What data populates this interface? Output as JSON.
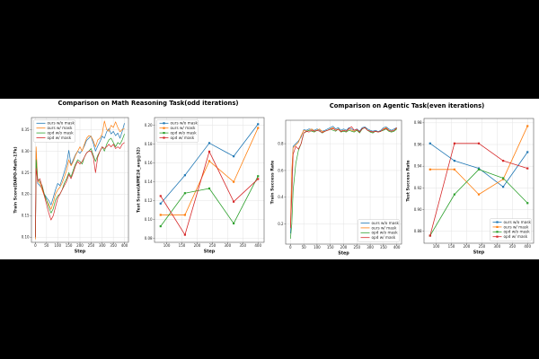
{
  "background_color": "#000000",
  "canvas_color": "#ffffff",
  "figures": [
    {
      "title": "Comparison on Math Reasoning Task(odd iterations)"
    },
    {
      "title": "Comparison on Agentic Task(even iterations)"
    }
  ],
  "palette": {
    "blue": "#1f77b4",
    "orange": "#ff7f0e",
    "green": "#2ca02c",
    "red": "#d62728"
  },
  "chart_data": [
    {
      "type": "line",
      "title": "Comparison on Math Reasoning Task(odd iterations)",
      "xlabel": "Step",
      "ylabel": "Train Score(DAPO-Math-17k)",
      "xlim": [
        -18,
        418
      ],
      "ylim": [
        0.088,
        0.378
      ],
      "xticks": [
        0,
        50,
        100,
        150,
        200,
        250,
        300,
        350,
        400
      ],
      "xtick_labels": [
        "0",
        "50",
        "100",
        "150",
        "200",
        "250",
        "300",
        "350",
        "400"
      ],
      "yticks": [
        0.1,
        0.15,
        0.2,
        0.25,
        0.3,
        0.35
      ],
      "ytick_labels": [
        "0.10",
        "0.15",
        "0.20",
        "0.25",
        "0.30",
        "0.35"
      ],
      "grid": true,
      "markers": false,
      "legend_pos": "upper-left",
      "x": [
        0,
        3,
        10,
        20,
        30,
        40,
        50,
        60,
        70,
        80,
        90,
        100,
        110,
        120,
        130,
        140,
        150,
        160,
        170,
        180,
        190,
        200,
        210,
        220,
        230,
        240,
        250,
        260,
        270,
        280,
        290,
        300,
        310,
        320,
        330,
        340,
        350,
        360,
        370,
        380,
        390,
        400
      ],
      "series": [
        {
          "name": "ours w/o mask",
          "color": "#1f77b4",
          "values": [
            0.1,
            0.3,
            0.225,
            0.22,
            0.213,
            0.2,
            0.192,
            0.185,
            0.175,
            0.192,
            0.21,
            0.225,
            0.22,
            0.235,
            0.252,
            0.27,
            0.302,
            0.268,
            0.28,
            0.292,
            0.3,
            0.295,
            0.302,
            0.312,
            0.325,
            0.33,
            0.335,
            0.318,
            0.3,
            0.312,
            0.322,
            0.335,
            0.33,
            0.345,
            0.352,
            0.34,
            0.346,
            0.336,
            0.342,
            0.33,
            0.346,
            0.365
          ]
        },
        {
          "name": "ours w/ mask",
          "color": "#ff7f0e",
          "values": [
            0.095,
            0.31,
            0.23,
            0.226,
            0.21,
            0.196,
            0.186,
            0.176,
            0.165,
            0.18,
            0.2,
            0.21,
            0.216,
            0.226,
            0.24,
            0.256,
            0.28,
            0.266,
            0.276,
            0.29,
            0.3,
            0.31,
            0.3,
            0.316,
            0.33,
            0.336,
            0.334,
            0.324,
            0.31,
            0.326,
            0.33,
            0.34,
            0.37,
            0.35,
            0.346,
            0.36,
            0.355,
            0.368,
            0.355,
            0.345,
            0.35,
            0.352
          ]
        },
        {
          "name": "opd w/o mask",
          "color": "#2ca02c",
          "values": [
            0.1,
            0.28,
            0.235,
            0.23,
            0.22,
            0.2,
            0.186,
            0.17,
            0.156,
            0.166,
            0.186,
            0.196,
            0.2,
            0.21,
            0.226,
            0.236,
            0.25,
            0.24,
            0.256,
            0.27,
            0.28,
            0.276,
            0.27,
            0.286,
            0.296,
            0.3,
            0.306,
            0.29,
            0.276,
            0.29,
            0.3,
            0.31,
            0.3,
            0.316,
            0.326,
            0.33,
            0.32,
            0.31,
            0.32,
            0.316,
            0.326,
            0.34
          ]
        },
        {
          "name": "opd w/ mask",
          "color": "#d62728",
          "values": [
            0.1,
            0.26,
            0.23,
            0.236,
            0.216,
            0.196,
            0.176,
            0.156,
            0.14,
            0.15,
            0.17,
            0.19,
            0.2,
            0.21,
            0.22,
            0.23,
            0.246,
            0.236,
            0.25,
            0.266,
            0.276,
            0.27,
            0.276,
            0.286,
            0.296,
            0.3,
            0.3,
            0.286,
            0.25,
            0.286,
            0.3,
            0.31,
            0.306,
            0.31,
            0.316,
            0.31,
            0.316,
            0.306,
            0.31,
            0.306,
            0.316,
            0.32
          ]
        }
      ]
    },
    {
      "type": "line",
      "title": "Comparison on Math Reasoning Task(odd iterations)",
      "xlabel": "Step",
      "ylabel": "Test Score(AIME24_avg@32)",
      "xlim": [
        60,
        420
      ],
      "ylim": [
        0.076,
        0.208
      ],
      "xticks": [
        100,
        150,
        200,
        250,
        300,
        350,
        400
      ],
      "xtick_labels": [
        "100",
        "150",
        "200",
        "250",
        "300",
        "350",
        "400"
      ],
      "yticks": [
        0.08,
        0.1,
        0.12,
        0.14,
        0.16,
        0.18,
        0.2
      ],
      "ytick_labels": [
        "0.08",
        "0.10",
        "0.12",
        "0.14",
        "0.16",
        "0.18",
        "0.20"
      ],
      "grid": true,
      "markers": true,
      "legend_pos": "upper-left",
      "x": [
        80,
        160,
        240,
        320,
        400
      ],
      "series": [
        {
          "name": "ours w/o mask",
          "color": "#1f77b4",
          "values": [
            0.117,
            0.147,
            0.181,
            0.167,
            0.201
          ]
        },
        {
          "name": "ours w/ mask",
          "color": "#ff7f0e",
          "values": [
            0.105,
            0.105,
            0.162,
            0.14,
            0.197
          ]
        },
        {
          "name": "opd w/o mask",
          "color": "#2ca02c",
          "values": [
            0.093,
            0.128,
            0.133,
            0.096,
            0.146
          ]
        },
        {
          "name": "opd w/ mask",
          "color": "#d62728",
          "values": [
            0.125,
            0.084,
            0.172,
            0.119,
            0.143
          ]
        }
      ]
    },
    {
      "type": "line",
      "title": "Comparison on Agentic Task(even iterations)",
      "xlabel": "Step",
      "ylabel": "Train Success Rate",
      "xlim": [
        -18,
        418
      ],
      "ylim": [
        0.05,
        0.975
      ],
      "xticks": [
        0,
        50,
        100,
        150,
        200,
        250,
        300,
        350,
        400
      ],
      "xtick_labels": [
        "0",
        "50",
        "100",
        "150",
        "200",
        "250",
        "300",
        "350",
        "400"
      ],
      "yticks": [
        0.2,
        0.4,
        0.6,
        0.8
      ],
      "ytick_labels": [
        "0.2",
        "0.4",
        "0.6",
        "0.8"
      ],
      "grid": true,
      "markers": false,
      "legend_pos": "lower-right",
      "x": [
        0,
        5,
        10,
        20,
        30,
        40,
        50,
        60,
        70,
        80,
        90,
        100,
        110,
        120,
        130,
        140,
        150,
        160,
        170,
        180,
        190,
        200,
        210,
        220,
        230,
        240,
        250,
        260,
        270,
        280,
        290,
        300,
        310,
        320,
        330,
        340,
        350,
        360,
        370,
        380,
        390,
        400
      ],
      "series": [
        {
          "name": "ours w/o mask",
          "color": "#1f77b4",
          "values": [
            0.13,
            0.55,
            0.78,
            0.8,
            0.82,
            0.85,
            0.905,
            0.9,
            0.91,
            0.905,
            0.9,
            0.91,
            0.9,
            0.893,
            0.9,
            0.91,
            0.92,
            0.93,
            0.91,
            0.92,
            0.9,
            0.91,
            0.9,
            0.92,
            0.91,
            0.9,
            0.91,
            0.893,
            0.92,
            0.925,
            0.91,
            0.9,
            0.893,
            0.9,
            0.89,
            0.9,
            0.92,
            0.925,
            0.91,
            0.9,
            0.91,
            0.92
          ]
        },
        {
          "name": "ours w/ mask",
          "color": "#ff7f0e",
          "values": [
            0.18,
            0.6,
            0.77,
            0.79,
            0.81,
            0.86,
            0.9,
            0.893,
            0.9,
            0.91,
            0.893,
            0.9,
            0.91,
            0.89,
            0.893,
            0.9,
            0.91,
            0.92,
            0.9,
            0.91,
            0.893,
            0.9,
            0.893,
            0.91,
            0.9,
            0.893,
            0.9,
            0.887,
            0.91,
            0.92,
            0.9,
            0.893,
            0.887,
            0.893,
            0.887,
            0.893,
            0.91,
            0.92,
            0.9,
            0.893,
            0.9,
            0.915
          ]
        },
        {
          "name": "opd w/o mask",
          "color": "#2ca02c",
          "values": [
            0.09,
            0.2,
            0.45,
            0.65,
            0.75,
            0.8,
            0.88,
            0.89,
            0.9,
            0.893,
            0.887,
            0.9,
            0.893,
            0.88,
            0.893,
            0.9,
            0.91,
            0.9,
            0.893,
            0.91,
            0.887,
            0.893,
            0.887,
            0.9,
            0.893,
            0.887,
            0.9,
            0.88,
            0.91,
            0.92,
            0.9,
            0.887,
            0.88,
            0.893,
            0.887,
            0.893,
            0.9,
            0.91,
            0.893,
            0.887,
            0.893,
            0.91
          ]
        },
        {
          "name": "opd w/ mask",
          "color": "#d62728",
          "values": [
            0.17,
            0.4,
            0.72,
            0.78,
            0.76,
            0.8,
            0.88,
            0.893,
            0.887,
            0.9,
            0.893,
            0.9,
            0.893,
            0.883,
            0.893,
            0.9,
            0.907,
            0.913,
            0.9,
            0.907,
            0.89,
            0.9,
            0.893,
            0.913,
            0.927,
            0.9,
            0.907,
            0.887,
            0.913,
            0.92,
            0.9,
            0.893,
            0.887,
            0.893,
            0.887,
            0.893,
            0.907,
            0.913,
            0.9,
            0.893,
            0.9,
            0.92
          ]
        }
      ]
    },
    {
      "type": "line",
      "title": "Comparison on Agentic Task(even iterations)",
      "xlabel": "Step",
      "ylabel": "Test Success Rate",
      "xlim": [
        60,
        420
      ],
      "ylim": [
        0.869,
        0.984
      ],
      "xticks": [
        100,
        150,
        200,
        250,
        300,
        350,
        400
      ],
      "xtick_labels": [
        "100",
        "150",
        "200",
        "250",
        "300",
        "350",
        "400"
      ],
      "yticks": [
        0.88,
        0.9,
        0.92,
        0.94,
        0.96,
        0.98
      ],
      "ytick_labels": [
        "0.88",
        "0.90",
        "0.92",
        "0.94",
        "0.96",
        "0.98"
      ],
      "grid": true,
      "markers": true,
      "legend_pos": "lower-right",
      "x": [
        80,
        160,
        240,
        320,
        400
      ],
      "series": [
        {
          "name": "ours w/o mask",
          "color": "#1f77b4",
          "values": [
            0.961,
            0.945,
            0.938,
            0.921,
            0.953
          ]
        },
        {
          "name": "ours w/ mask",
          "color": "#ff7f0e",
          "values": [
            0.937,
            0.937,
            0.914,
            0.928,
            0.977
          ]
        },
        {
          "name": "opd w/o mask",
          "color": "#2ca02c",
          "values": [
            0.876,
            0.914,
            0.937,
            0.929,
            0.906
          ]
        },
        {
          "name": "opd w/ mask",
          "color": "#d62728",
          "values": [
            0.876,
            0.961,
            0.961,
            0.945,
            0.938
          ]
        }
      ]
    }
  ]
}
